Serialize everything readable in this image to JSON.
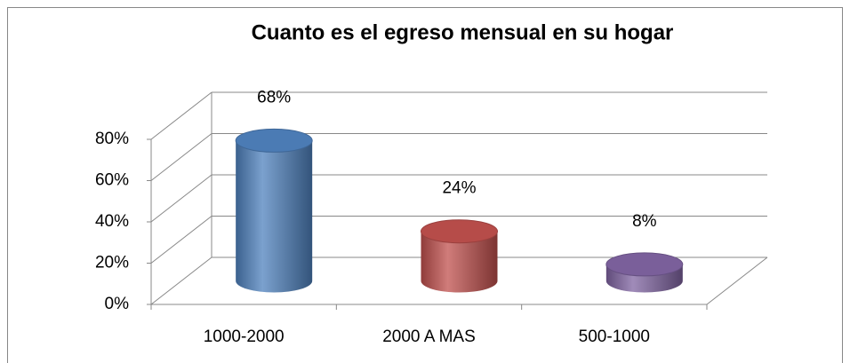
{
  "chart_data": {
    "type": "bar3d",
    "title": "Cuanto es el egreso mensual  en su hogar",
    "categories": [
      "1000-2000",
      "2000 A MAS",
      "500-1000"
    ],
    "values": [
      68,
      24,
      8
    ],
    "value_labels": [
      "68%",
      "24%",
      "8%"
    ],
    "colors": [
      "#4f81bd",
      "#c0504d",
      "#8064a2"
    ],
    "ylim": [
      0,
      80
    ],
    "yticks": [
      {
        "value": 0,
        "label": "0%"
      },
      {
        "value": 20,
        "label": "20%"
      },
      {
        "value": 40,
        "label": "40%"
      },
      {
        "value": 60,
        "label": "60%"
      },
      {
        "value": 80,
        "label": "80%"
      }
    ],
    "grid": true
  }
}
